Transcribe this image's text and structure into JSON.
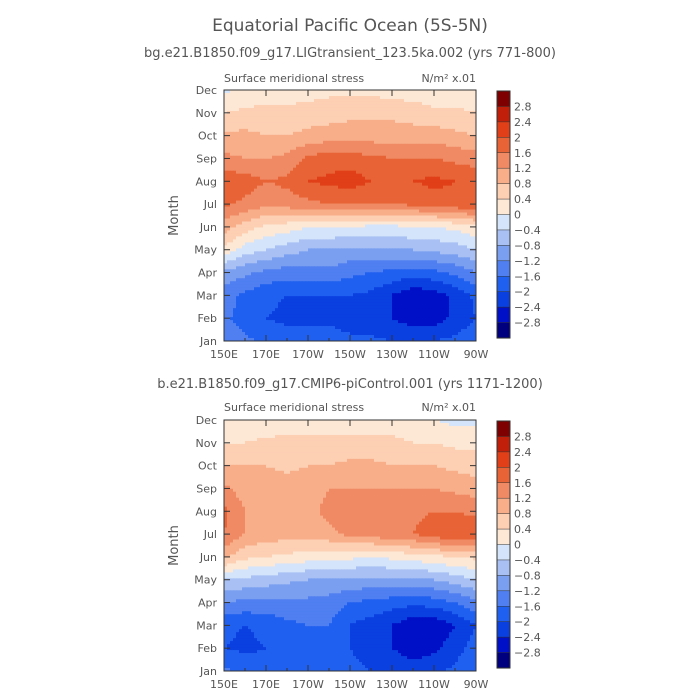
{
  "figure": {
    "title": "Equatorial Pacific Ocean (5S-5N)"
  },
  "chart_data": [
    {
      "type": "heatmap",
      "title": "bg.e21.B1850.f09_g17.LIGtransient_123.5ka.002 (yrs 771-800)",
      "left_label": "Surface meridional stress",
      "units_label": "N/m² x.01",
      "ylabel": "Month",
      "xlabel": "",
      "x_ticks": [
        "150E",
        "170E",
        "170W",
        "150W",
        "130W",
        "110W",
        "90W"
      ],
      "y_ticks": [
        "Jan",
        "Feb",
        "Mar",
        "Apr",
        "May",
        "Jun",
        "Jul",
        "Aug",
        "Sep",
        "Oct",
        "Nov",
        "Dec"
      ],
      "x_range_degE": [
        150,
        270
      ],
      "y_range": [
        "Jan",
        "Dec"
      ],
      "contour_levels": [
        -2.8,
        -2.4,
        -2.0,
        -1.6,
        -1.2,
        -0.8,
        -0.4,
        0,
        0.4,
        0.8,
        1.2,
        1.6,
        2.0,
        2.4,
        2.8
      ],
      "colorbar_labels": [
        "2.8",
        "2.4",
        "2",
        "1.6",
        "1.2",
        "0.8",
        "0.4",
        "0",
        "−0.4",
        "−0.8",
        "−1.2",
        "−1.6",
        "−2",
        "−2.4",
        "−2.8"
      ],
      "grid_lon_degE": [
        150,
        160,
        170,
        180,
        190,
        200,
        210,
        220,
        230,
        240,
        250,
        260,
        270
      ],
      "z": [
        [
          -1.3,
          -1.5,
          -1.7,
          -1.8,
          -1.8,
          -1.8,
          -1.9,
          -1.9,
          -2.0,
          -2.1,
          -2.0,
          -1.9,
          -1.7
        ],
        [
          -1.5,
          -1.8,
          -2.0,
          -2.1,
          -2.1,
          -2.1,
          -2.2,
          -2.3,
          -2.4,
          -2.6,
          -2.6,
          -2.3,
          -2.0
        ],
        [
          -1.4,
          -1.7,
          -1.9,
          -2.0,
          -2.0,
          -2.0,
          -2.0,
          -2.1,
          -2.4,
          -2.7,
          -2.6,
          -2.3,
          -1.9
        ],
        [
          -0.9,
          -1.1,
          -1.3,
          -1.4,
          -1.4,
          -1.3,
          -1.5,
          -1.6,
          -1.7,
          -1.8,
          -1.7,
          -1.5,
          -1.2
        ],
        [
          0.3,
          -0.2,
          -0.4,
          -0.6,
          -0.8,
          -0.8,
          -0.9,
          -0.9,
          -0.8,
          -0.8,
          -0.7,
          -0.6,
          -0.4
        ],
        [
          1.0,
          0.6,
          0.3,
          0.2,
          0.0,
          0.0,
          0.0,
          -0.1,
          -0.1,
          0.0,
          0.0,
          0.1,
          0.3
        ],
        [
          1.7,
          1.5,
          1.3,
          1.4,
          1.5,
          1.6,
          1.6,
          1.6,
          1.6,
          1.7,
          1.8,
          1.9,
          2.0
        ],
        [
          1.9,
          1.8,
          1.6,
          1.7,
          2.0,
          2.1,
          2.2,
          2.0,
          1.9,
          2.0,
          2.1,
          2.0,
          1.9
        ],
        [
          1.3,
          1.2,
          1.2,
          1.3,
          1.7,
          1.8,
          1.8,
          1.7,
          1.6,
          1.6,
          1.6,
          1.5,
          1.4
        ],
        [
          0.9,
          0.9,
          0.8,
          0.8,
          0.9,
          1.0,
          1.0,
          1.0,
          1.0,
          1.0,
          1.0,
          0.9,
          0.8
        ],
        [
          0.4,
          0.5,
          0.5,
          0.5,
          0.6,
          0.6,
          0.7,
          0.7,
          0.7,
          0.6,
          0.5,
          0.5,
          0.4
        ],
        [
          -0.1,
          0.1,
          0.2,
          0.2,
          0.2,
          0.3,
          0.3,
          0.3,
          0.2,
          0.2,
          0.1,
          0.1,
          0.0
        ]
      ]
    },
    {
      "type": "heatmap",
      "title": "b.e21.B1850.f09_g17.CMIP6-piControl.001 (yrs 1171-1200)",
      "left_label": "Surface meridional stress",
      "units_label": "N/m² x.01",
      "ylabel": "Month",
      "xlabel": "",
      "x_ticks": [
        "150E",
        "170E",
        "170W",
        "150W",
        "130W",
        "110W",
        "90W"
      ],
      "y_ticks": [
        "Jan",
        "Feb",
        "Mar",
        "Apr",
        "May",
        "Jun",
        "Jul",
        "Aug",
        "Sep",
        "Oct",
        "Nov",
        "Dec"
      ],
      "x_range_degE": [
        150,
        270
      ],
      "y_range": [
        "Jan",
        "Dec"
      ],
      "contour_levels": [
        -2.8,
        -2.4,
        -2.0,
        -1.6,
        -1.2,
        -0.8,
        -0.4,
        0,
        0.4,
        0.8,
        1.2,
        1.6,
        2.0,
        2.4,
        2.8
      ],
      "colorbar_labels": [
        "2.8",
        "2.4",
        "2",
        "1.6",
        "1.2",
        "0.8",
        "0.4",
        "0",
        "−0.4",
        "−0.8",
        "−1.2",
        "−1.6",
        "−2",
        "−2.4",
        "−2.8"
      ],
      "grid_lon_degE": [
        150,
        160,
        170,
        180,
        190,
        200,
        210,
        220,
        230,
        240,
        250,
        260,
        270
      ],
      "z": [
        [
          -1.5,
          -1.7,
          -1.8,
          -1.8,
          -1.8,
          -1.8,
          -1.9,
          -2.0,
          -2.1,
          -2.2,
          -2.1,
          -1.9,
          -1.6
        ],
        [
          -2.0,
          -2.1,
          -2.0,
          -1.9,
          -1.8,
          -1.8,
          -2.0,
          -2.2,
          -2.4,
          -2.6,
          -2.5,
          -2.2,
          -1.8
        ],
        [
          -1.9,
          -2.0,
          -1.9,
          -1.7,
          -1.6,
          -1.6,
          -2.0,
          -2.2,
          -2.4,
          -2.7,
          -2.7,
          -2.4,
          -2.0
        ],
        [
          -1.2,
          -1.3,
          -1.3,
          -1.3,
          -1.3,
          -1.4,
          -1.6,
          -1.7,
          -1.8,
          -1.9,
          -1.8,
          -1.6,
          -1.3
        ],
        [
          -0.4,
          -0.5,
          -0.6,
          -0.7,
          -0.8,
          -0.8,
          -0.9,
          -0.9,
          -0.9,
          -0.9,
          -0.8,
          -0.6,
          -0.4
        ],
        [
          0.9,
          0.5,
          0.4,
          0.3,
          0.2,
          0.1,
          0.1,
          0.0,
          0.1,
          0.2,
          0.3,
          0.4,
          0.5
        ],
        [
          1.6,
          1.2,
          1.0,
          1.0,
          1.0,
          1.1,
          1.3,
          1.4,
          1.5,
          1.6,
          1.8,
          2.0,
          1.9
        ],
        [
          1.7,
          1.2,
          1.1,
          1.1,
          1.1,
          1.3,
          1.5,
          1.5,
          1.5,
          1.5,
          1.6,
          1.6,
          1.5
        ],
        [
          1.3,
          1.0,
          1.0,
          1.0,
          1.0,
          1.2,
          1.2,
          1.2,
          1.2,
          1.2,
          1.2,
          1.1,
          1.0
        ],
        [
          0.8,
          0.8,
          0.8,
          0.7,
          0.8,
          0.8,
          0.9,
          0.9,
          0.8,
          0.8,
          0.8,
          0.7,
          0.6
        ],
        [
          0.4,
          0.4,
          0.5,
          0.5,
          0.5,
          0.5,
          0.5,
          0.5,
          0.5,
          0.4,
          0.4,
          0.3,
          0.3
        ],
        [
          0.1,
          0.1,
          0.1,
          0.2,
          0.2,
          0.2,
          0.2,
          0.2,
          0.2,
          0.1,
          0.0,
          -0.1,
          -0.1
        ]
      ]
    }
  ],
  "colors": {
    "palette_low_to_high": [
      "#00007f",
      "#0010c6",
      "#0a3fe0",
      "#2060f0",
      "#4f7ff0",
      "#7a9ff0",
      "#a8c0f4",
      "#d4e4fa",
      "#fde8d6",
      "#fdcfb3",
      "#f9ae8a",
      "#f08a64",
      "#e86437",
      "#e03f18",
      "#c11f0a",
      "#7f0000"
    ],
    "text": "#555555",
    "axis": "#333333"
  }
}
